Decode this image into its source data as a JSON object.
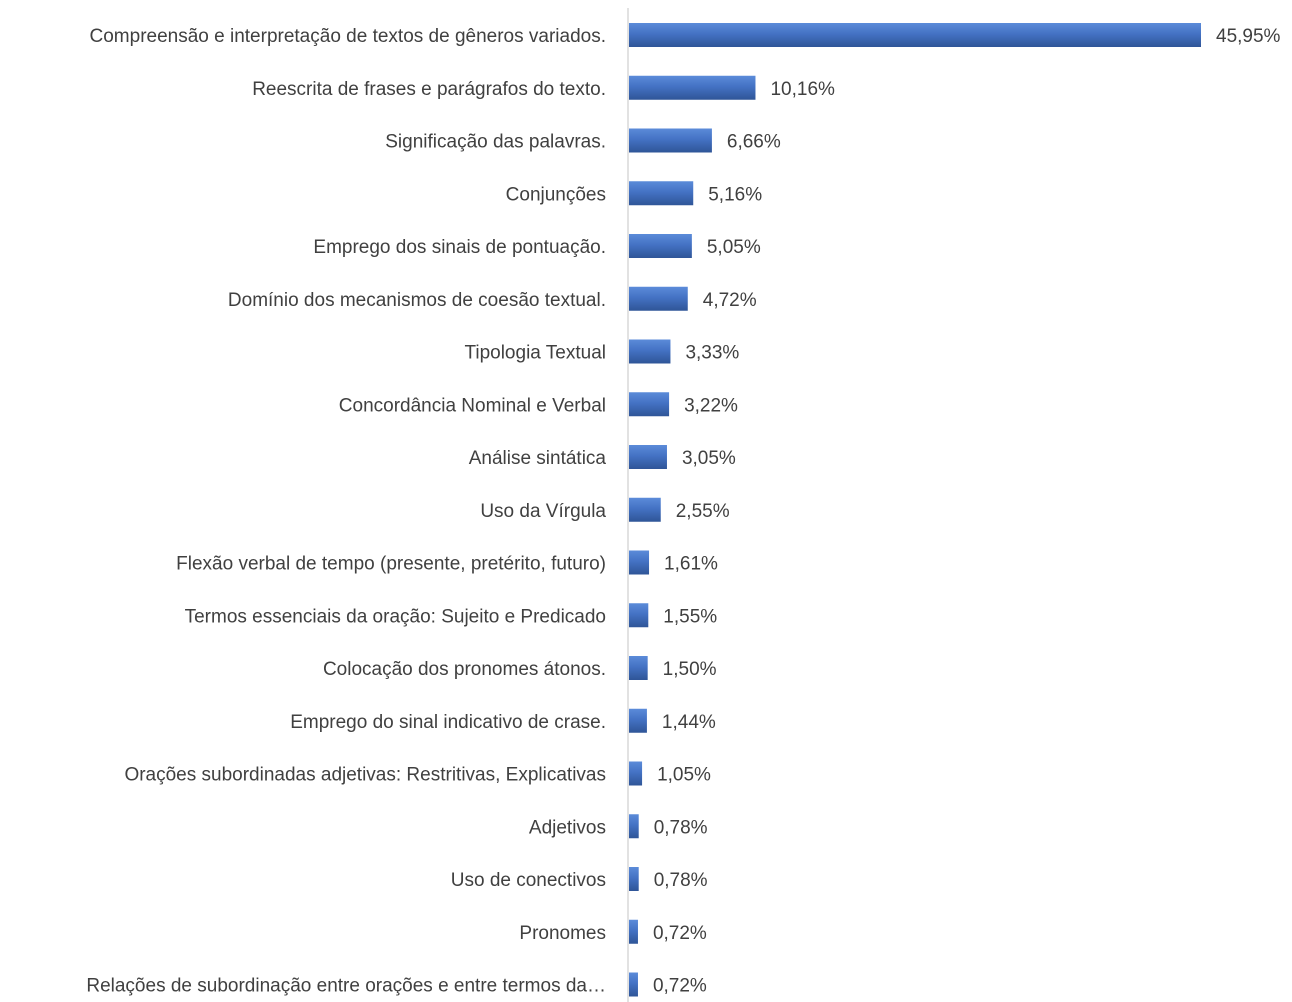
{
  "chart_data": {
    "type": "bar",
    "orientation": "horizontal",
    "title": "",
    "xlabel": "",
    "ylabel": "",
    "grid": false,
    "legend": "none",
    "bar_color": "#4472C4",
    "axis_color": "#D9D9D9",
    "text_color": "#404040",
    "xlim": [
      0,
      45.95
    ],
    "categories": [
      "Compreensão e interpretação de textos de gêneros variados.",
      "Reescrita de frases e parágrafos do texto.",
      "Significação das palavras.",
      "Conjunções",
      "Emprego dos sinais de pontuação.",
      "Domínio dos mecanismos de coesão textual.",
      "Tipologia Textual",
      "Concordância Nominal e Verbal",
      "Análise sintática",
      "Uso da Vírgula",
      "Flexão verbal de tempo (presente, pretérito, futuro)",
      "Termos essenciais da oração: Sujeito e Predicado",
      "Colocação dos pronomes átonos.",
      "Emprego do sinal indicativo de crase.",
      "Orações subordinadas adjetivas: Restritivas, Explicativas",
      "Adjetivos",
      "Uso de conectivos",
      "Pronomes",
      "Relações de subordinação entre orações e entre termos da…"
    ],
    "values": [
      45.95,
      10.16,
      6.66,
      5.16,
      5.05,
      4.72,
      3.33,
      3.22,
      3.05,
      2.55,
      1.61,
      1.55,
      1.5,
      1.44,
      1.05,
      0.78,
      0.78,
      0.72,
      0.72
    ],
    "value_labels": [
      "45,95%",
      "10,16%",
      "6,66%",
      "5,16%",
      "5,05%",
      "4,72%",
      "3,33%",
      "3,22%",
      "3,05%",
      "2,55%",
      "1,61%",
      "1,55%",
      "1,50%",
      "1,44%",
      "1,05%",
      "0,78%",
      "0,78%",
      "0,72%",
      "0,72%"
    ]
  }
}
